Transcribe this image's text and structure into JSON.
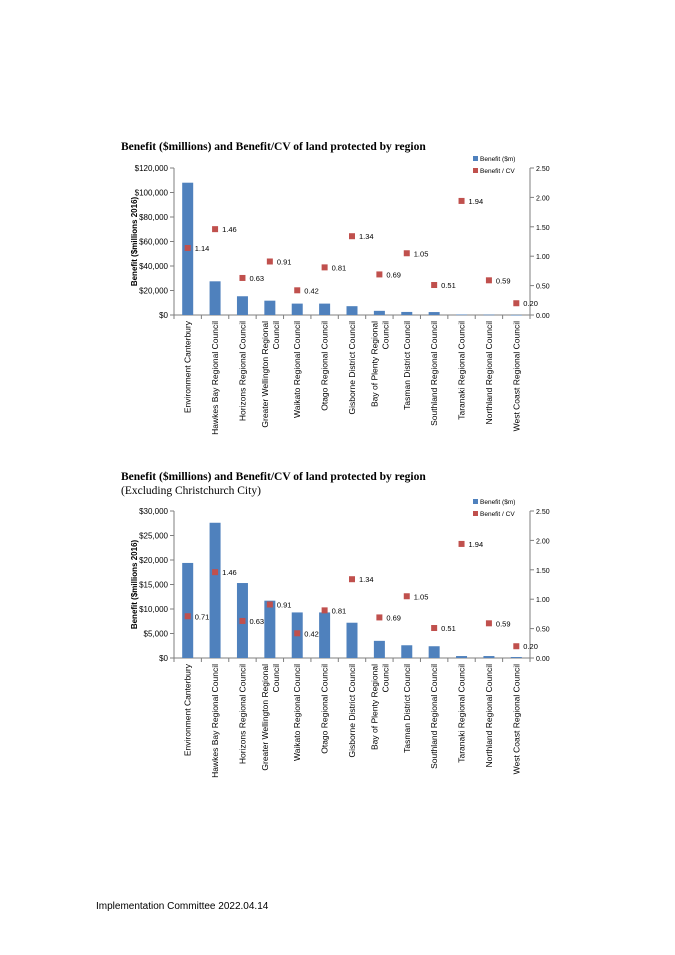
{
  "footer": "Implementation Committee 2022.04.14",
  "colors": {
    "bar": "#4F81BD",
    "marker": "#C0504D",
    "axis": "#7F7F7F"
  },
  "charts": [
    {
      "title": "Benefit ($millions)  and  Benefit/CV of land protected by region",
      "subtitle": ""
    },
    {
      "title": "Benefit ($millions)  and  Benefit/CV of land protected by region",
      "subtitle": "(Excluding  Christchurch  City)"
    }
  ],
  "chart_data": [
    {
      "type": "bar",
      "title": "Benefit ($millions)  and  Benefit/CV of land protected by region",
      "ylabel": "Benefit ($millions 2016)",
      "ylim": [
        0,
        120000
      ],
      "y2lim": [
        0,
        2.5
      ],
      "yticks": [
        "$0",
        "$20,000",
        "$40,000",
        "$60,000",
        "$80,000",
        "$100,000",
        "$120,000"
      ],
      "y2ticks": [
        "0.00",
        "0.50",
        "1.00",
        "1.50",
        "2.00",
        "2.50"
      ],
      "legend": "top-right",
      "categories": [
        [
          "Environment Canterbury"
        ],
        [
          "Hawkes Bay Regional Council"
        ],
        [
          "Horizons Regional Council"
        ],
        [
          "Greater Wellington Regional",
          "Council"
        ],
        [
          "Waikato Regional Council"
        ],
        [
          "Otago Regional Council"
        ],
        [
          "Gisborne District Council"
        ],
        [
          "Bay of Plenty Regional",
          "Council"
        ],
        [
          "Tasman District Council"
        ],
        [
          "Southland Regional Council"
        ],
        [
          "Taranaki Regional Council"
        ],
        [
          "Northland Regional Council"
        ],
        [
          "West Coast Regional Council"
        ]
      ],
      "series": [
        {
          "name": "Benefit ($m)",
          "type": "bar",
          "axis": "left",
          "values": [
            108000,
            27500,
            15300,
            11700,
            9300,
            9300,
            7200,
            3400,
            2500,
            2400,
            400,
            300,
            100
          ]
        },
        {
          "name": "Benefit / CV",
          "type": "scatter",
          "axis": "right",
          "values": [
            1.14,
            1.46,
            0.63,
            0.91,
            0.42,
            0.81,
            1.34,
            0.69,
            1.05,
            0.51,
            1.94,
            0.59,
            0.2
          ],
          "labels": [
            "1.14",
            "1.46",
            "0.63",
            "0.91",
            "0.42",
            "0.81",
            "1.34",
            "0.69",
            "1.05",
            "0.51",
            "1.94",
            "0.59",
            "0.20"
          ]
        }
      ]
    },
    {
      "type": "bar",
      "title": "Benefit ($millions)  and  Benefit/CV of land protected by region",
      "subtitle": "(Excluding  Christchurch  City)",
      "ylabel": "Benefit ($millions 2016)",
      "ylim": [
        0,
        30000
      ],
      "y2lim": [
        0,
        2.5
      ],
      "yticks": [
        "$0",
        "$5,000",
        "$10,000",
        "$15,000",
        "$20,000",
        "$25,000",
        "$30,000"
      ],
      "y2ticks": [
        "0.00",
        "0.50",
        "1.00",
        "1.50",
        "2.00",
        "2.50"
      ],
      "legend": "top-right",
      "categories": [
        [
          "Environment Canterbury"
        ],
        [
          "Hawkes Bay Regional Council"
        ],
        [
          "Horizons Regional Council"
        ],
        [
          "Greater Wellington Regional",
          "Council"
        ],
        [
          "Waikato Regional Council"
        ],
        [
          "Otago Regional Council"
        ],
        [
          "Gisborne District Council"
        ],
        [
          "Bay of Plenty Regional",
          "Council"
        ],
        [
          "Tasman District Council"
        ],
        [
          "Southland Regional Council"
        ],
        [
          "Taranaki Regional Council"
        ],
        [
          "Northland Regional Council"
        ],
        [
          "West Coast Regional Council"
        ]
      ],
      "series": [
        {
          "name": "Benefit ($m)",
          "type": "bar",
          "axis": "left",
          "values": [
            19400,
            27600,
            15300,
            11700,
            9300,
            9300,
            7200,
            3500,
            2600,
            2400,
            400,
            400,
            200
          ]
        },
        {
          "name": "Benefit / CV",
          "type": "scatter",
          "axis": "right",
          "values": [
            0.71,
            1.46,
            0.63,
            0.91,
            0.42,
            0.81,
            1.34,
            0.69,
            1.05,
            0.51,
            1.94,
            0.59,
            0.2
          ],
          "labels": [
            "0.71",
            "1.46",
            "0.63",
            "0.91",
            "0.42",
            "0.81",
            "1.34",
            "0.69",
            "1.05",
            "0.51",
            "1.94",
            "0.59",
            "0.20"
          ]
        }
      ]
    }
  ]
}
